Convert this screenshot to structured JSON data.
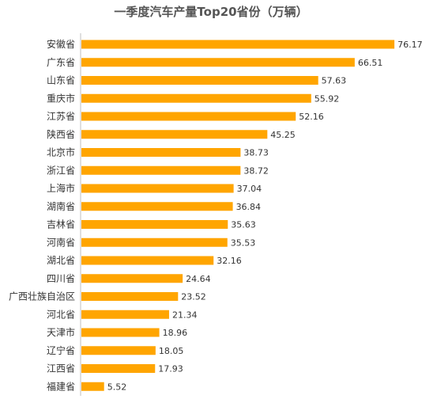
{
  "chart_data": {
    "type": "bar",
    "orientation": "horizontal",
    "title": "一季度汽车产量Top20省份（万辆）",
    "categories": [
      "安徽省",
      "广东省",
      "山东省",
      "重庆市",
      "江苏省",
      "陕西省",
      "北京市",
      "浙江省",
      "上海市",
      "湖南省",
      "吉林省",
      "河南省",
      "湖北省",
      "四川省",
      "广西壮族自治区",
      "河北省",
      "天津市",
      "辽宁省",
      "江西省",
      "福建省"
    ],
    "values": [
      76.17,
      66.51,
      57.63,
      55.92,
      52.16,
      45.25,
      38.73,
      38.72,
      37.04,
      36.84,
      35.63,
      35.53,
      32.16,
      24.64,
      23.52,
      21.34,
      18.96,
      18.05,
      17.93,
      5.52
    ],
    "value_labels": [
      "76.17",
      "66.51",
      "57.63",
      "55.92",
      "52.16",
      "45.25",
      "38.73",
      "38.72",
      "37.04",
      "36.84",
      "35.63",
      "35.53",
      "32.16",
      "24.64",
      "23.52",
      "21.34",
      "18.96",
      "18.05",
      "17.93",
      "5.52"
    ],
    "bar_color": "#FFA500",
    "grid": false,
    "legend": "none"
  }
}
